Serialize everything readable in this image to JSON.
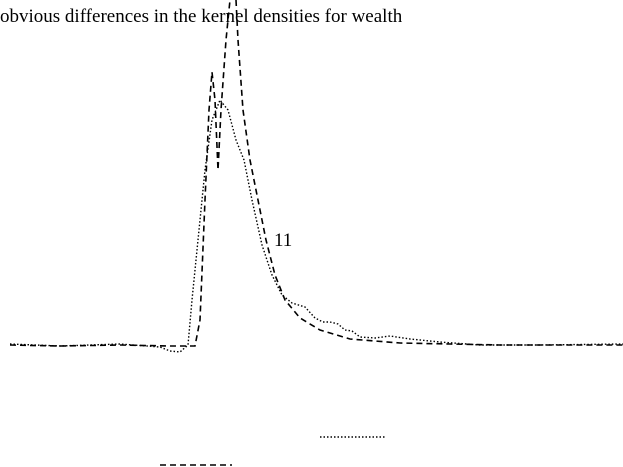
{
  "body": {
    "lines": [
      "obvious differences in the kernel densities for wealth"
    ],
    "page_number": "11"
  }
}
